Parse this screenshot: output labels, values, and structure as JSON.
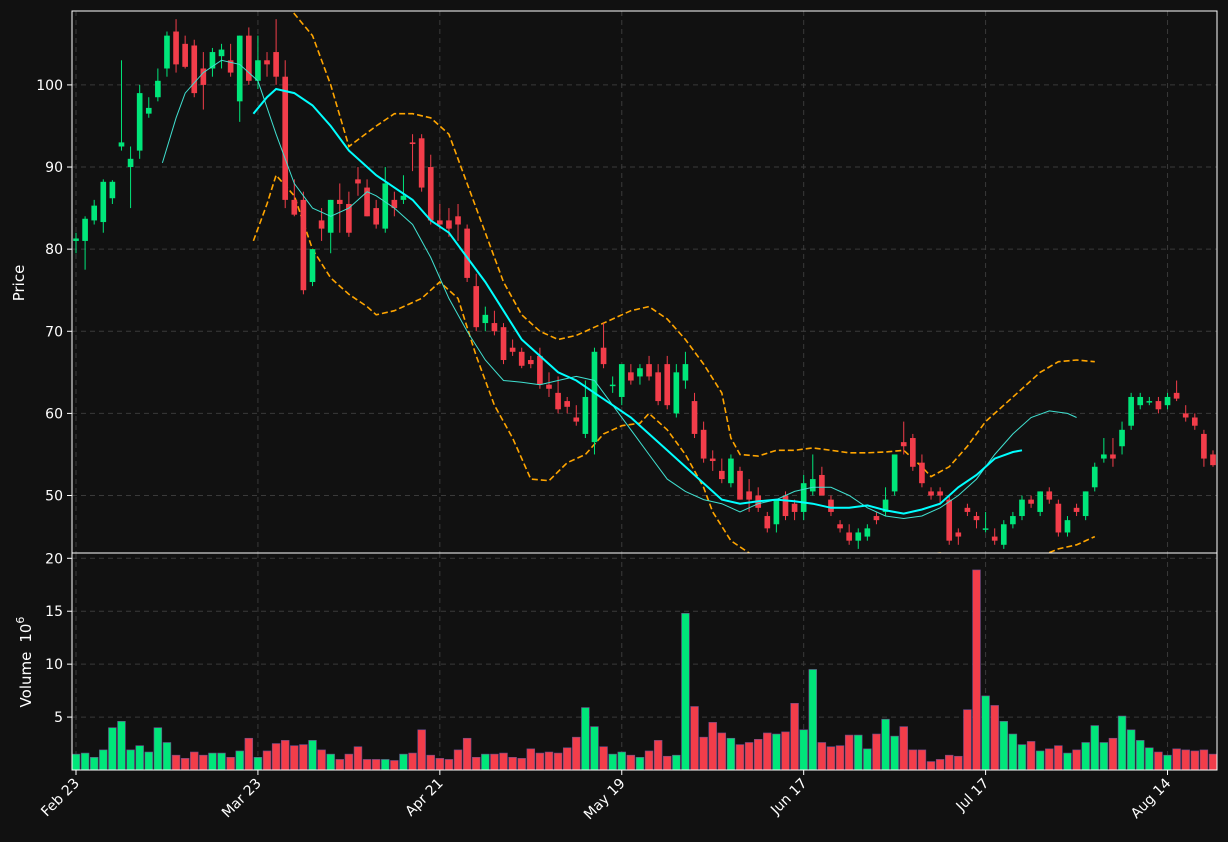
{
  "chart_data": {
    "type": "candlestick",
    "price_panel": {
      "ylabel": "Price",
      "ylim": [
        43,
        109
      ],
      "yticks": [
        50,
        60,
        70,
        80,
        90,
        100
      ],
      "bollinger_color": "#ffa500",
      "ma_short_color": "#40e0d0",
      "ma_long_color": "#00ffff"
    },
    "volume_panel": {
      "ylabel": "Volume",
      "ylabel_exponent": "10",
      "ylabel_exponent_power": "6",
      "ylim": [
        0,
        20.5
      ],
      "yticks": [
        5,
        10,
        15,
        20
      ]
    },
    "xtick_labels": [
      "Feb 23",
      "Mar 23",
      "Apr 21",
      "May 19",
      "Jun 17",
      "Jul 17",
      "Aug 14"
    ],
    "xtick_indices": [
      0,
      20,
      40,
      60,
      80,
      100,
      120
    ],
    "up_color": "#00e67a",
    "down_color": "#f23d4a",
    "background": "#111111",
    "ohlc": [
      [
        81,
        82,
        79.5,
        81.3
      ],
      [
        81,
        84,
        77.5,
        83.7
      ],
      [
        83.5,
        86,
        83,
        85.3
      ],
      [
        83.3,
        88.5,
        82,
        88.2
      ],
      [
        86.2,
        88.4,
        85.5,
        88.2
      ],
      [
        92.5,
        103,
        92,
        93
      ],
      [
        90,
        92.5,
        85,
        91
      ],
      [
        92,
        100,
        91,
        99
      ],
      [
        96.5,
        98.5,
        96,
        97.2
      ],
      [
        98.5,
        102,
        98,
        100.5
      ],
      [
        102,
        106.5,
        101,
        106
      ],
      [
        106.5,
        108,
        101.5,
        102.5
      ],
      [
        105,
        106,
        102,
        102.2
      ],
      [
        104.8,
        105.5,
        98.5,
        99
      ],
      [
        102,
        104,
        97,
        100
      ],
      [
        102,
        104.5,
        101,
        104
      ],
      [
        103.5,
        105,
        102,
        104.3
      ],
      [
        103,
        105,
        101,
        101.5
      ],
      [
        98,
        106,
        95.5,
        106
      ],
      [
        106,
        107,
        100,
        100.5
      ],
      [
        100.5,
        106,
        99.5,
        103
      ],
      [
        103,
        104,
        101,
        102.5
      ],
      [
        104,
        108,
        100,
        101
      ],
      [
        101,
        103,
        85,
        86
      ],
      [
        86,
        88.5,
        84,
        84.2
      ],
      [
        86,
        87,
        74.5,
        75
      ],
      [
        76,
        80,
        75.5,
        80
      ],
      [
        83.5,
        85,
        81,
        82.5
      ],
      [
        82,
        86,
        79.5,
        86
      ],
      [
        86,
        88,
        82,
        85.5
      ],
      [
        85.5,
        87,
        81.5,
        82
      ],
      [
        88.5,
        90,
        86.5,
        88
      ],
      [
        87.5,
        88.5,
        84,
        84
      ],
      [
        85,
        86,
        82.5,
        83
      ],
      [
        82.5,
        90,
        82,
        88
      ],
      [
        86,
        87,
        84,
        85
      ],
      [
        86,
        89,
        85.5,
        86.5
      ],
      [
        93,
        94,
        89.5,
        92.8
      ],
      [
        93.5,
        94,
        87,
        87.5
      ],
      [
        90,
        91.5,
        83,
        83.5
      ],
      [
        83.5,
        85.5,
        82.5,
        83
      ],
      [
        83.5,
        85,
        81.5,
        82.5
      ],
      [
        84,
        85.5,
        81,
        83
      ],
      [
        82.5,
        83,
        76,
        76.5
      ],
      [
        75.5,
        77,
        70,
        70.5
      ],
      [
        71,
        73,
        70,
        72
      ],
      [
        71,
        72.5,
        69.5,
        70
      ],
      [
        70.5,
        71,
        66,
        66.5
      ],
      [
        68,
        69,
        67,
        67.5
      ],
      [
        67.5,
        68,
        65.5,
        65.8
      ],
      [
        66.5,
        67,
        65.5,
        66
      ],
      [
        67,
        68,
        63,
        63.5
      ],
      [
        63.5,
        65,
        62,
        63
      ],
      [
        62.5,
        64.5,
        60,
        60.5
      ],
      [
        61.5,
        62,
        60,
        60.8
      ],
      [
        59.5,
        61,
        58.5,
        59
      ],
      [
        57.5,
        64,
        57,
        62
      ],
      [
        56.5,
        68,
        55,
        67.5
      ],
      [
        68,
        71,
        65.5,
        66
      ],
      [
        63.5,
        64.5,
        62.5,
        63.5
      ],
      [
        62,
        66,
        61,
        66
      ],
      [
        65,
        66,
        63.5,
        64
      ],
      [
        64.5,
        66,
        63.5,
        65.5
      ],
      [
        66,
        67,
        64,
        64.5
      ],
      [
        65,
        66,
        61,
        61.5
      ],
      [
        66,
        67,
        60.5,
        61
      ],
      [
        60,
        66,
        59.5,
        65
      ],
      [
        64,
        67.5,
        63,
        66
      ],
      [
        61.5,
        62.5,
        57,
        57.5
      ],
      [
        58,
        59,
        54,
        54.5
      ],
      [
        54.5,
        55.5,
        53,
        54.2
      ],
      [
        53,
        54.5,
        51.5,
        52
      ],
      [
        51.5,
        55,
        51,
        54.5
      ],
      [
        53,
        53.5,
        49.5,
        49.5
      ],
      [
        50.5,
        52,
        48,
        49.5
      ],
      [
        50,
        51,
        48,
        48.5
      ],
      [
        47.5,
        48,
        45.5,
        46
      ],
      [
        46.5,
        49.5,
        45.5,
        49.5
      ],
      [
        50,
        50.5,
        47,
        47.5
      ],
      [
        49,
        49.5,
        47,
        48
      ],
      [
        48,
        52.5,
        47,
        51.5
      ],
      [
        50.5,
        55,
        50,
        52
      ],
      [
        52.5,
        53.5,
        50,
        50
      ],
      [
        49.5,
        50,
        47.5,
        48
      ],
      [
        46.5,
        47,
        45.5,
        46
      ],
      [
        45.5,
        46.5,
        44,
        44.5
      ],
      [
        44.5,
        46,
        43.5,
        45.5
      ],
      [
        45,
        46.5,
        44.5,
        46
      ],
      [
        47.5,
        48,
        46.5,
        47
      ],
      [
        48,
        51,
        47.5,
        49.5
      ],
      [
        50.5,
        55,
        50,
        55
      ],
      [
        56.5,
        59,
        55,
        56
      ],
      [
        57,
        57.5,
        53,
        53.5
      ],
      [
        54,
        55,
        51,
        51.5
      ],
      [
        50.5,
        51,
        49.5,
        50
      ],
      [
        50.5,
        51,
        49,
        50
      ],
      [
        49.5,
        50,
        44,
        44.5
      ],
      [
        45.5,
        46,
        44,
        45
      ],
      [
        48.5,
        49,
        47.5,
        48
      ],
      [
        47.5,
        48,
        46,
        47
      ],
      [
        46,
        48,
        45.5,
        46
      ],
      [
        45,
        46,
        44,
        44.5
      ],
      [
        44,
        47,
        43.5,
        46.5
      ],
      [
        46.5,
        48,
        46,
        47.5
      ],
      [
        47.5,
        50,
        47,
        49.5
      ],
      [
        49.5,
        50,
        48.5,
        49
      ],
      [
        48,
        50.5,
        47.5,
        50.5
      ],
      [
        50.5,
        51,
        49,
        49.5
      ],
      [
        49,
        49.5,
        45,
        45.5
      ],
      [
        45.5,
        47.5,
        45,
        47
      ],
      [
        48.5,
        49,
        47.5,
        48
      ],
      [
        47.5,
        50.5,
        47,
        50.5
      ],
      [
        51,
        54,
        50.5,
        53.5
      ],
      [
        54.5,
        57,
        54,
        55
      ],
      [
        55,
        57,
        53.5,
        54.5
      ],
      [
        56,
        59,
        55,
        58
      ],
      [
        58.5,
        62.5,
        58,
        62
      ],
      [
        61,
        62.5,
        60.5,
        62
      ],
      [
        61.5,
        62,
        61,
        61.5
      ],
      [
        61.5,
        62,
        60,
        60.5
      ],
      [
        61,
        62.5,
        60.5,
        62
      ],
      [
        62.5,
        64,
        61.5,
        61.8
      ],
      [
        60,
        61,
        59,
        59.5
      ],
      [
        59.5,
        60,
        58,
        58.5
      ],
      [
        57.5,
        58,
        53.5,
        54.5
      ],
      [
        55,
        55.5,
        53.5,
        53.7
      ]
    ],
    "volume": [
      1.5,
      1.6,
      1.2,
      1.9,
      4,
      4.6,
      1.9,
      2.3,
      1.7,
      4.0,
      2.6,
      1.4,
      1.1,
      1.7,
      1.4,
      1.6,
      1.6,
      1.2,
      1.8,
      3.0,
      1.2,
      1.8,
      2.5,
      2.8,
      2.3,
      2.4,
      2.8,
      1.9,
      1.5,
      1.0,
      1.5,
      2.2,
      1.0,
      1.0,
      1.0,
      0.9,
      1.5,
      1.6,
      3.8,
      1.4,
      1.1,
      1.0,
      1.9,
      3.0,
      1.2,
      1.5,
      1.5,
      1.6,
      1.2,
      1.1,
      2.0,
      1.6,
      1.7,
      1.6,
      2.1,
      3.1,
      5.9,
      4.1,
      2.2,
      1.5,
      1.7,
      1.4,
      1.2,
      1.8,
      2.8,
      1.3,
      1.4,
      14.8,
      6.0,
      3.1,
      4.5,
      3.5,
      3.0,
      2.4,
      2.6,
      2.9,
      3.5,
      3.4,
      3.6,
      6.3,
      3.8,
      9.5,
      2.6,
      2.2,
      2.3,
      3.3,
      3.3,
      2.0,
      3.4,
      4.8,
      3.2,
      4.1,
      1.9,
      1.9,
      0.8,
      1.0,
      1.4,
      1.3,
      5.7,
      18.9,
      7.0,
      6.1,
      4.6,
      3.4,
      2.4,
      2.7,
      1.8,
      2.0,
      2.3,
      1.6,
      1.9,
      2.6,
      4.2,
      2.6,
      3.0,
      5.1,
      3.8,
      2.8,
      2.1,
      1.7,
      1.4,
      2.0,
      1.9,
      1.8,
      1.9,
      1.5
    ],
    "bollinger_upper": [
      [
        19.5,
        116
      ],
      [
        23,
        110
      ],
      [
        26,
        106
      ],
      [
        28,
        100
      ],
      [
        30,
        92.5
      ],
      [
        33,
        95
      ],
      [
        35,
        96.5
      ],
      [
        37,
        96.5
      ],
      [
        39,
        96
      ],
      [
        41,
        94
      ],
      [
        43,
        88
      ],
      [
        45,
        82
      ],
      [
        47,
        76
      ],
      [
        49,
        72
      ],
      [
        51,
        70
      ],
      [
        53,
        69
      ],
      [
        55,
        69.5
      ],
      [
        57,
        70.5
      ],
      [
        59,
        71.5
      ],
      [
        61,
        72.5
      ],
      [
        63,
        73
      ],
      [
        65,
        71.5
      ],
      [
        67,
        69
      ],
      [
        69,
        66
      ],
      [
        71,
        62.5
      ],
      [
        72,
        57
      ],
      [
        73,
        55
      ],
      [
        75,
        54.8
      ],
      [
        77,
        55.5
      ],
      [
        79,
        55.5
      ],
      [
        81,
        55.8
      ],
      [
        83,
        55.5
      ],
      [
        85,
        55.2
      ],
      [
        87,
        55.2
      ],
      [
        89,
        55.3
      ],
      [
        91,
        55.5
      ],
      [
        93,
        53.5
      ],
      [
        94,
        52.3
      ],
      [
        96,
        53.5
      ],
      [
        98,
        56
      ],
      [
        100,
        59
      ],
      [
        102,
        61
      ],
      [
        104,
        63
      ],
      [
        106,
        65
      ],
      [
        108,
        66.3
      ],
      [
        110,
        66.5
      ],
      [
        112,
        66.3
      ]
    ],
    "bollinger_lower": [
      [
        19.5,
        81
      ],
      [
        21,
        85.5
      ],
      [
        22,
        89
      ],
      [
        24,
        86.5
      ],
      [
        26,
        80
      ],
      [
        28,
        76.5
      ],
      [
        30,
        74.5
      ],
      [
        32,
        73
      ],
      [
        33,
        72
      ],
      [
        35,
        72.5
      ],
      [
        37,
        73.5
      ],
      [
        38,
        74
      ],
      [
        40,
        76
      ],
      [
        42,
        74
      ],
      [
        44,
        67
      ],
      [
        46,
        61
      ],
      [
        48,
        57
      ],
      [
        50,
        52
      ],
      [
        52,
        51.8
      ],
      [
        54,
        54
      ],
      [
        56,
        55
      ],
      [
        58,
        57.5
      ],
      [
        60,
        58.5
      ],
      [
        62,
        58.8
      ],
      [
        63,
        60
      ],
      [
        65,
        58
      ],
      [
        67,
        55
      ],
      [
        69,
        51
      ],
      [
        70,
        48
      ],
      [
        72,
        44.5
      ],
      [
        74,
        43
      ],
      [
        75,
        42.5
      ],
      [
        80,
        42.2
      ],
      [
        85,
        42.6
      ],
      [
        90,
        42.6
      ],
      [
        95,
        43
      ],
      [
        97,
        42.8
      ],
      [
        100,
        42
      ],
      [
        104,
        41.8
      ],
      [
        106,
        42.6
      ],
      [
        108,
        43.5
      ],
      [
        110,
        44
      ],
      [
        112,
        45
      ]
    ],
    "ma_short": [
      [
        9.5,
        90.5
      ],
      [
        11,
        96
      ],
      [
        12,
        99
      ],
      [
        14,
        101.5
      ],
      [
        16,
        103
      ],
      [
        18,
        102.5
      ],
      [
        20,
        100.5
      ],
      [
        22,
        94
      ],
      [
        24,
        88
      ],
      [
        26,
        85
      ],
      [
        28,
        84
      ],
      [
        30,
        85
      ],
      [
        32,
        87
      ],
      [
        33,
        86.5
      ],
      [
        35,
        85
      ],
      [
        37,
        83
      ],
      [
        39,
        79
      ],
      [
        41,
        74
      ],
      [
        43,
        70
      ],
      [
        45,
        66.5
      ],
      [
        47,
        64
      ],
      [
        49,
        63.8
      ],
      [
        51,
        63.5
      ],
      [
        53,
        64
      ],
      [
        55,
        64.5
      ],
      [
        57,
        64
      ],
      [
        59,
        61
      ],
      [
        61,
        58
      ],
      [
        63,
        55
      ],
      [
        65,
        52
      ],
      [
        67,
        50.5
      ],
      [
        69,
        49.5
      ],
      [
        71,
        49
      ],
      [
        73,
        48
      ],
      [
        75,
        49
      ],
      [
        77,
        49.5
      ],
      [
        79,
        50.5
      ],
      [
        81,
        51
      ],
      [
        83,
        51
      ],
      [
        85,
        50
      ],
      [
        87,
        48.5
      ],
      [
        89,
        47.5
      ],
      [
        91,
        47.2
      ],
      [
        93,
        47.5
      ],
      [
        95,
        48.5
      ],
      [
        97,
        50
      ],
      [
        99,
        52
      ],
      [
        101,
        55
      ],
      [
        103,
        57.5
      ],
      [
        105,
        59.5
      ],
      [
        107,
        60.3
      ],
      [
        109,
        60
      ],
      [
        110,
        59.5
      ]
    ],
    "ma_long": [
      [
        19.5,
        96.5
      ],
      [
        21,
        98.5
      ],
      [
        22,
        99.5
      ],
      [
        24,
        99
      ],
      [
        26,
        97.5
      ],
      [
        28,
        95
      ],
      [
        30,
        92
      ],
      [
        32,
        90
      ],
      [
        33,
        89
      ],
      [
        35,
        87.5
      ],
      [
        37,
        86
      ],
      [
        39,
        83.5
      ],
      [
        41,
        82
      ],
      [
        43,
        79
      ],
      [
        45,
        76
      ],
      [
        47,
        72.5
      ],
      [
        49,
        69
      ],
      [
        51,
        67
      ],
      [
        53,
        65
      ],
      [
        55,
        64
      ],
      [
        57,
        62.5
      ],
      [
        59,
        61
      ],
      [
        61,
        59.5
      ],
      [
        63,
        57.5
      ],
      [
        65,
        55.5
      ],
      [
        67,
        53.5
      ],
      [
        69,
        51.5
      ],
      [
        71,
        49.5
      ],
      [
        73,
        49
      ],
      [
        75,
        49.3
      ],
      [
        77,
        49.5
      ],
      [
        79,
        49.3
      ],
      [
        81,
        49
      ],
      [
        83,
        48.5
      ],
      [
        85,
        48.5
      ],
      [
        87,
        48.8
      ],
      [
        89,
        48.2
      ],
      [
        91,
        47.8
      ],
      [
        93,
        48.3
      ],
      [
        95,
        49
      ],
      [
        97,
        51
      ],
      [
        99,
        52.5
      ],
      [
        101,
        54.5
      ],
      [
        103,
        55.3
      ],
      [
        104,
        55.5
      ]
    ],
    "band_index_scale": 1.0
  }
}
